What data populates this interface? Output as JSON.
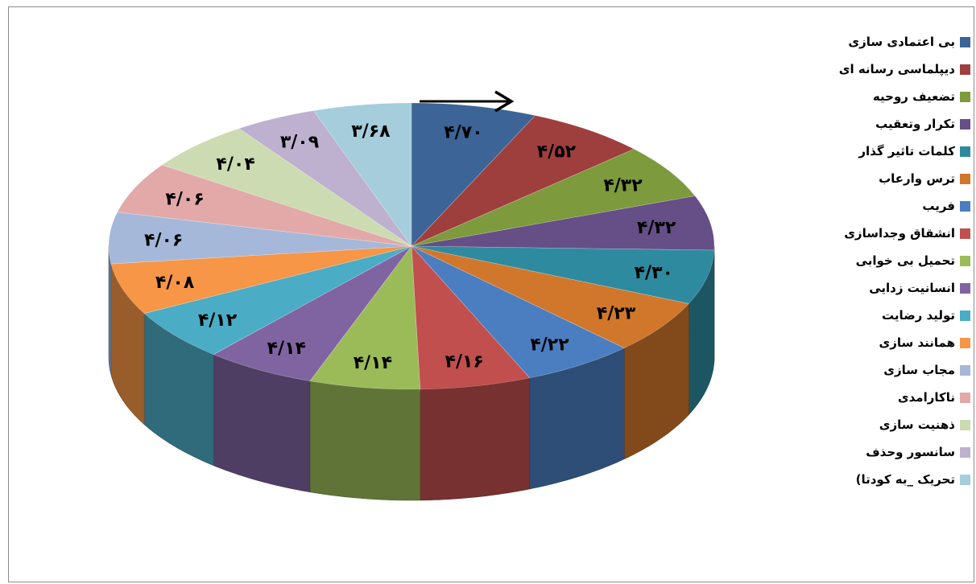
{
  "chart_data": {
    "type": "pie",
    "view": "3d",
    "title": "",
    "legend_position": "right",
    "slices": [
      {
        "label": "بی اعتمادی سازی",
        "value": 4.7,
        "value_label": "۴/۷۰",
        "color": "#3C6496"
      },
      {
        "label": "دیپلماسی رسانه ای",
        "value": 4.52,
        "value_label": "۴/۵۲",
        "color": "#9E3F3D"
      },
      {
        "label": "تضعیف روحیه",
        "value": 4.32,
        "value_label": "۴/۳۲",
        "color": "#7D9A3C"
      },
      {
        "label": "تکرار وتعقیب",
        "value": 4.32,
        "value_label": "۴/۳۲",
        "color": "#654F86"
      },
      {
        "label": "کلمات تاثیر گذار",
        "value": 4.3,
        "value_label": "۴/۳۰",
        "color": "#2E8A9F"
      },
      {
        "label": "ترس وارعاب",
        "value": 4.23,
        "value_label": "۴/۲۳",
        "color": "#D1772B"
      },
      {
        "label": "فریب",
        "value": 4.22,
        "value_label": "۴/۲۲",
        "color": "#4A7EC0"
      },
      {
        "label": "انشقاق وجداسازی",
        "value": 4.16,
        "value_label": "۴/۱۶",
        "color": "#C04F4D"
      },
      {
        "label": "تحمیل بی خوابی",
        "value": 4.14,
        "value_label": "۴/۱۴",
        "color": "#9BBB59"
      },
      {
        "label": "انسانیت زدایی",
        "value": 4.14,
        "value_label": "۴/۱۴",
        "color": "#8064A2"
      },
      {
        "label": "تولید رضایت",
        "value": 4.12,
        "value_label": "۴/۱۲",
        "color": "#4BACC6"
      },
      {
        "label": "همانند سازی",
        "value": 4.08,
        "value_label": "۴/۰۸",
        "color": "#F79646"
      },
      {
        "label": "مجاب سازی",
        "value": 4.06,
        "value_label": "۴/۰۶",
        "color": "#A5B8D9"
      },
      {
        "label": "ناکارامدی",
        "value": 4.06,
        "value_label": "۴/۰۶",
        "color": "#E2A9A8"
      },
      {
        "label": "ذهنیت سازی",
        "value": 4.04,
        "value_label": "۴/۰۴",
        "color": "#CCDBB1"
      },
      {
        "label": "سانسور وحذف",
        "value": 3.09,
        "value_label": "۳/۰۹",
        "color": "#BDB1CF"
      },
      {
        "label": "تحریک _به کودتا)",
        "value": 3.68,
        "value_label": "۳/۶۸",
        "color": "#A5CDDC"
      }
    ]
  }
}
